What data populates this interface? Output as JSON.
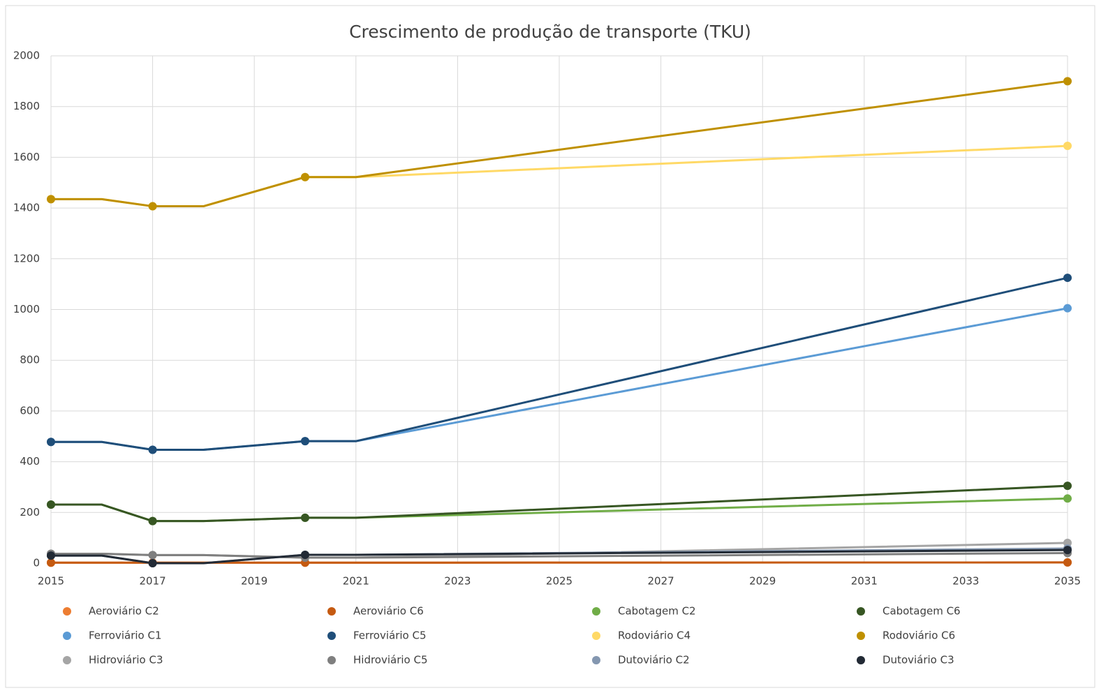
{
  "chart_data": {
    "type": "line",
    "title": "Crescimento de produção de transporte (TKU)",
    "x": [
      2015,
      2016,
      2017,
      2018,
      2020,
      2021,
      2035
    ],
    "xlim": [
      2015,
      2035
    ],
    "xticks": [
      2015,
      2017,
      2019,
      2021,
      2023,
      2025,
      2027,
      2029,
      2031,
      2033,
      2035
    ],
    "ylim": [
      0,
      2000
    ],
    "yticks": [
      0,
      200,
      400,
      600,
      800,
      1000,
      1200,
      1400,
      1600,
      1800,
      2000
    ],
    "grid": true,
    "legend": "bottom",
    "series": [
      {
        "name": "Aeroviário C2",
        "color": "#ed7d31",
        "values": [
          2,
          2,
          2,
          2,
          2,
          2,
          3
        ]
      },
      {
        "name": "Aeroviário C6",
        "color": "#c55a11",
        "values": [
          2,
          2,
          2,
          2,
          2,
          2,
          3
        ]
      },
      {
        "name": "Cabotagem C2",
        "color": "#70ad47",
        "values": [
          231,
          231,
          166,
          166,
          179,
          179,
          255
        ]
      },
      {
        "name": "Cabotagem C6",
        "color": "#375623",
        "values": [
          231,
          231,
          166,
          166,
          179,
          179,
          305
        ]
      },
      {
        "name": "Ferroviário C1",
        "color": "#5b9bd5",
        "values": [
          478,
          478,
          447,
          447,
          481,
          481,
          1005
        ]
      },
      {
        "name": "Ferroviário C5",
        "color": "#1f4e79",
        "values": [
          478,
          478,
          447,
          447,
          481,
          481,
          1125
        ]
      },
      {
        "name": "Rodoviário C4",
        "color": "#ffd966",
        "values": [
          1435,
          1435,
          1407,
          1407,
          1522,
          1522,
          1645
        ]
      },
      {
        "name": "Rodoviário C6",
        "color": "#bf9000",
        "values": [
          1435,
          1435,
          1407,
          1407,
          1522,
          1522,
          1900
        ]
      },
      {
        "name": "Hidroviário C3",
        "color": "#a5a5a5",
        "values": [
          37,
          37,
          32,
          32,
          22,
          22,
          80
        ]
      },
      {
        "name": "Hidroviário C5",
        "color": "#7f7f7f",
        "values": [
          37,
          37,
          32,
          32,
          22,
          22,
          40
        ]
      },
      {
        "name": "Dutoviário C2",
        "color": "#8497b0",
        "values": [
          30,
          30,
          0,
          0,
          33,
          33,
          58
        ]
      },
      {
        "name": "Dutoviário C3",
        "color": "#222a35",
        "values": [
          30,
          30,
          0,
          0,
          33,
          33,
          52
        ]
      }
    ]
  }
}
